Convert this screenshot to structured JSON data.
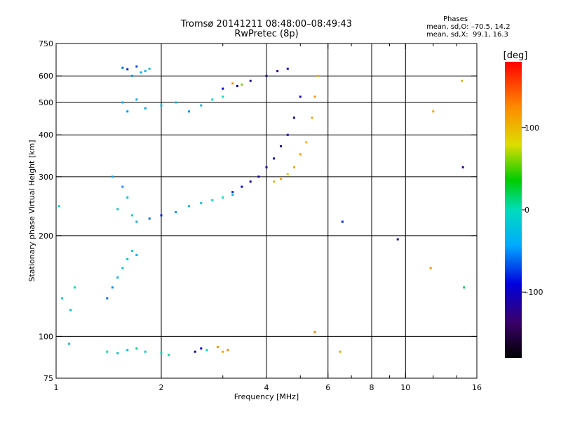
{
  "header": {
    "title_line1": "Tromsø 20141211 08:48:00–08:49:43",
    "title_line2": "RwPretec (8p)",
    "phases_title": "Phases",
    "phases_o": "mean, sd,O: –70.5, 14.2",
    "phases_x": "mean, sd,X:  99.1, 16.3"
  },
  "chart_data": {
    "type": "scatter",
    "xlabel": "Frequency [MHz]",
    "ylabel": "Stationary phase Virtual Height [km]",
    "xscale": "log",
    "yscale": "log",
    "xlim": [
      1,
      16
    ],
    "ylim": [
      75,
      750
    ],
    "xticks": [
      1,
      2,
      4,
      6,
      8,
      10,
      16
    ],
    "xtick_labels": [
      "1",
      "2",
      "4",
      "6",
      "8",
      "10",
      "16"
    ],
    "yticks": [
      75,
      100,
      200,
      300,
      400,
      500,
      600,
      750
    ],
    "ytick_labels": [
      "75",
      "100",
      "200",
      "300",
      "400",
      "500",
      "600",
      "750"
    ],
    "x_gridlines": [
      2,
      4,
      6,
      8,
      10
    ],
    "y_gridlines": [
      100,
      200,
      300,
      400,
      500,
      600
    ],
    "colorbar": {
      "label": "[deg]",
      "range": [
        -180,
        180
      ],
      "ticks": [
        100,
        0,
        -100
      ],
      "tick_labels": [
        "100",
        "0",
        "–100"
      ]
    },
    "series": [
      {
        "x": [
          1.02,
          1.04,
          1.1,
          1.13,
          1.09
        ],
        "y": [
          245,
          130,
          120,
          140,
          95
        ],
        "phase": [
          0,
          -10,
          -20,
          -5,
          -30
        ]
      },
      {
        "x": [
          1.55,
          1.6,
          1.65,
          1.7,
          1.75,
          1.8,
          1.85
        ],
        "y": [
          635,
          628,
          600,
          640,
          615,
          620,
          630
        ],
        "phase": [
          -60,
          -80,
          -50,
          -70,
          -40,
          -30,
          -20
        ]
      },
      {
        "x": [
          1.55,
          1.6,
          1.7,
          1.8
        ],
        "y": [
          500,
          470,
          510,
          480
        ],
        "phase": [
          -30,
          -50,
          -40,
          -20
        ]
      },
      {
        "x": [
          1.45,
          1.5,
          1.55,
          1.6,
          1.65
        ],
        "y": [
          300,
          240,
          280,
          260,
          230
        ],
        "phase": [
          -40,
          -20,
          -50,
          -30,
          -10
        ]
      },
      {
        "x": [
          1.4,
          1.45,
          1.5,
          1.55,
          1.6,
          1.65,
          1.7
        ],
        "y": [
          130,
          140,
          150,
          160,
          170,
          180,
          175
        ],
        "phase": [
          -60,
          -50,
          -40,
          -30,
          -20,
          -10,
          -35
        ]
      },
      {
        "x": [
          1.4,
          1.5,
          1.6,
          1.7,
          1.8,
          2.0,
          2.1
        ],
        "y": [
          90,
          89,
          91,
          92,
          90,
          89,
          88
        ],
        "phase": [
          0,
          -20,
          -30,
          10,
          -10,
          0,
          5
        ]
      },
      {
        "x": [
          1.8,
          2.0,
          2.2,
          2.4,
          2.6,
          2.8,
          3.0
        ],
        "y": [
          480,
          490,
          500,
          470,
          490,
          510,
          520
        ],
        "phase": [
          -40,
          -30,
          -20,
          -50,
          -30,
          -10,
          0
        ]
      },
      {
        "x": [
          3.0,
          3.3,
          3.6,
          4.0,
          4.3,
          4.6
        ],
        "y": [
          550,
          560,
          580,
          600,
          620,
          630
        ],
        "phase": [
          -90,
          -100,
          -110,
          -120,
          -130,
          -100
        ]
      },
      {
        "x": [
          3.2,
          3.4
        ],
        "y": [
          570,
          565
        ],
        "phase": [
          120,
          60
        ]
      },
      {
        "x": [
          1.7,
          1.85,
          2.0,
          2.2,
          2.4,
          2.6,
          2.8,
          3.0,
          3.2
        ],
        "y": [
          220,
          225,
          230,
          235,
          245,
          250,
          255,
          260,
          265
        ],
        "phase": [
          -40,
          -60,
          -80,
          -50,
          -30,
          -20,
          -10,
          0,
          -30
        ]
      },
      {
        "x": [
          3.2,
          3.4,
          3.6,
          3.8,
          4.0,
          4.2,
          4.4,
          4.6,
          4.8,
          5.0
        ],
        "y": [
          270,
          280,
          290,
          300,
          320,
          340,
          370,
          400,
          450,
          520
        ],
        "phase": [
          -80,
          -90,
          -100,
          -110,
          -120,
          -100,
          -110,
          -120,
          -110,
          -100
        ]
      },
      {
        "x": [
          4.2,
          4.4,
          4.6,
          4.8,
          5.0,
          5.2,
          5.4,
          5.5,
          5.6
        ],
        "y": [
          290,
          295,
          305,
          320,
          350,
          380,
          450,
          520,
          600
        ],
        "phase": [
          100,
          110,
          95,
          105,
          115,
          100,
          110,
          120,
          105
        ]
      },
      {
        "x": [
          2.5,
          2.6,
          2.7,
          2.9,
          3.0,
          3.1
        ],
        "y": [
          90,
          92,
          91,
          93,
          90,
          91
        ],
        "phase": [
          -110,
          -90,
          0,
          120,
          110,
          130
        ]
      },
      {
        "x": [
          6.5,
          6.6,
          9.5,
          11.8,
          12.0,
          14.5,
          14.6,
          14.7
        ],
        "y": [
          90,
          220,
          195,
          160,
          470,
          580,
          320,
          140
        ],
        "phase": [
          110,
          -80,
          -120,
          120,
          110,
          100,
          -130,
          20
        ]
      },
      {
        "x": [
          5.5
        ],
        "y": [
          103
        ],
        "phase": [
          130
        ]
      }
    ]
  }
}
